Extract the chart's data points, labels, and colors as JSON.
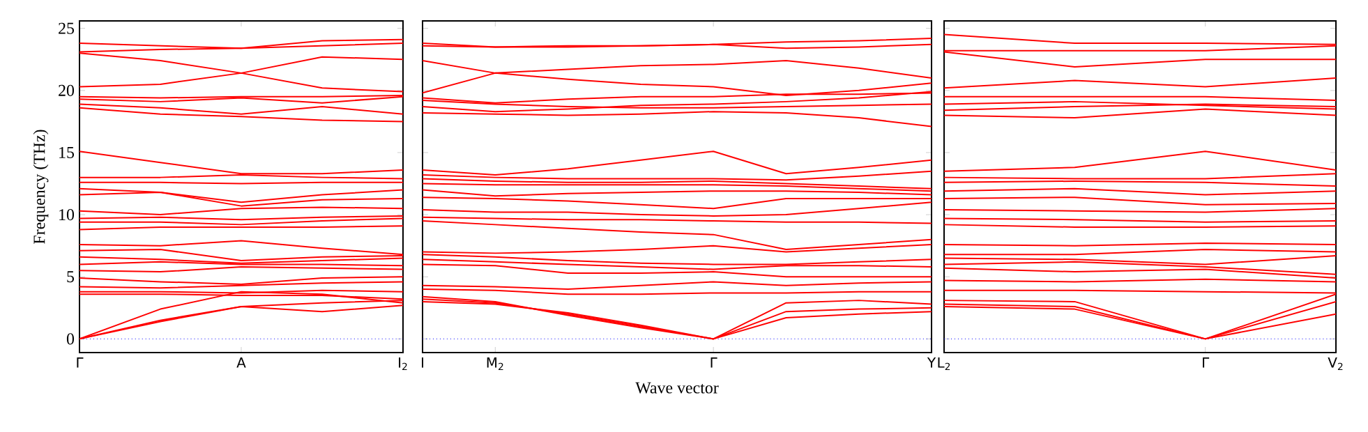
{
  "chart_data": [
    {
      "type": "line",
      "ylabel": "Frequency (THz)",
      "categories": [
        "Γ",
        null,
        "A",
        null,
        "I$_{2}$"
      ],
      "ylim": [
        -1.1,
        25.6
      ],
      "yticks": [
        0,
        5,
        10,
        15,
        20,
        25
      ],
      "ref_lines": [
        {
          "axis": "y",
          "value": 0,
          "color": "#0000ff",
          "line_style": "dotted"
        }
      ],
      "series": [
        {
          "color": "#ff0000",
          "values": [
            23.8,
            23.6,
            23.4,
            24.0,
            24.1
          ]
        },
        {
          "color": "#ff0000",
          "values": [
            23.1,
            23.3,
            23.4,
            23.6,
            23.8
          ]
        },
        {
          "color": "#ff0000",
          "values": [
            23.0,
            22.4,
            21.4,
            22.7,
            22.5
          ]
        },
        {
          "color": "#ff0000",
          "values": [
            20.3,
            20.5,
            21.4,
            20.2,
            19.9
          ]
        },
        {
          "color": "#ff0000",
          "values": [
            19.5,
            19.4,
            19.5,
            19.5,
            19.6
          ]
        },
        {
          "color": "#ff0000",
          "values": [
            19.3,
            19.1,
            19.4,
            19.0,
            19.5
          ]
        },
        {
          "color": "#ff0000",
          "values": [
            18.9,
            18.6,
            18.1,
            18.7,
            18.1
          ]
        },
        {
          "color": "#ff0000",
          "values": [
            18.6,
            18.1,
            17.9,
            17.6,
            17.5
          ]
        },
        {
          "color": "#ff0000",
          "values": [
            15.1,
            14.2,
            13.3,
            13.3,
            13.6
          ]
        },
        {
          "color": "#ff0000",
          "values": [
            13.0,
            13.0,
            13.2,
            13.0,
            12.9
          ]
        },
        {
          "color": "#ff0000",
          "values": [
            12.6,
            12.6,
            12.5,
            12.6,
            12.6
          ]
        },
        {
          "color": "#ff0000",
          "values": [
            12.1,
            11.8,
            11.0,
            11.6,
            12.0
          ]
        },
        {
          "color": "#ff0000",
          "values": [
            11.6,
            11.8,
            10.7,
            11.2,
            11.3
          ]
        },
        {
          "color": "#ff0000",
          "values": [
            10.3,
            10.0,
            10.5,
            10.6,
            10.5
          ]
        },
        {
          "color": "#ff0000",
          "values": [
            9.7,
            9.8,
            9.6,
            9.8,
            9.9
          ]
        },
        {
          "color": "#ff0000",
          "values": [
            9.4,
            9.4,
            9.2,
            9.5,
            9.7
          ]
        },
        {
          "color": "#ff0000",
          "values": [
            8.8,
            9.0,
            9.0,
            9.0,
            9.1
          ]
        },
        {
          "color": "#ff0000",
          "values": [
            7.6,
            7.5,
            7.9,
            7.3,
            6.8
          ]
        },
        {
          "color": "#ff0000",
          "values": [
            7.1,
            7.2,
            6.3,
            6.6,
            6.7
          ]
        },
        {
          "color": "#ff0000",
          "values": [
            6.6,
            6.4,
            6.1,
            6.3,
            6.5
          ]
        },
        {
          "color": "#ff0000",
          "values": [
            6.0,
            6.2,
            6.0,
            6.0,
            5.9
          ]
        },
        {
          "color": "#ff0000",
          "values": [
            5.5,
            5.4,
            5.8,
            5.7,
            5.6
          ]
        },
        {
          "color": "#ff0000",
          "values": [
            4.9,
            4.6,
            4.4,
            4.9,
            5.0
          ]
        },
        {
          "color": "#ff0000",
          "values": [
            4.2,
            4.1,
            4.3,
            4.5,
            4.6
          ]
        },
        {
          "color": "#ff0000",
          "values": [
            3.8,
            3.8,
            3.7,
            3.9,
            3.8
          ]
        },
        {
          "color": "#ff0000",
          "values": [
            3.6,
            3.6,
            3.5,
            3.5,
            3.2
          ]
        },
        {
          "color": "#ff0000",
          "values": [
            0,
            2.4,
            3.8,
            3.6,
            2.9
          ]
        },
        {
          "color": "#ff0000",
          "values": [
            0,
            1.5,
            2.6,
            2.9,
            3.1
          ]
        },
        {
          "color": "#ff0000",
          "values": [
            0,
            1.4,
            2.6,
            2.2,
            2.7
          ]
        }
      ]
    },
    {
      "type": "line",
      "xlabel": "Wave vector",
      "tick_labels": "x",
      "categories": [
        "I",
        "M$_{2}$",
        null,
        null,
        "Γ",
        null,
        null,
        "Y"
      ],
      "ylim": [
        -1.1,
        25.6
      ],
      "yticks": [
        0,
        5,
        10,
        15,
        20,
        25
      ],
      "ref_lines": [
        {
          "axis": "y",
          "value": 0,
          "color": "#0000ff",
          "line_style": "dotted"
        }
      ],
      "series": [
        {
          "color": "#ff0000",
          "values": [
            23.8,
            23.5,
            23.6,
            23.6,
            23.7,
            23.9,
            24.0,
            24.2
          ]
        },
        {
          "color": "#ff0000",
          "values": [
            23.6,
            23.5,
            23.5,
            23.6,
            23.7,
            23.4,
            23.5,
            23.7
          ]
        },
        {
          "color": "#ff0000",
          "values": [
            22.4,
            21.4,
            21.7,
            22.0,
            22.1,
            22.4,
            21.8,
            21.0
          ]
        },
        {
          "color": "#ff0000",
          "values": [
            19.8,
            21.4,
            20.9,
            20.5,
            20.3,
            19.6,
            20.0,
            20.6
          ]
        },
        {
          "color": "#ff0000",
          "values": [
            19.4,
            19.0,
            19.3,
            19.5,
            19.5,
            19.7,
            19.7,
            19.8
          ]
        },
        {
          "color": "#ff0000",
          "values": [
            18.7,
            18.3,
            18.5,
            18.8,
            18.9,
            19.1,
            19.4,
            19.9
          ]
        },
        {
          "color": "#ff0000",
          "values": [
            19.2,
            18.9,
            18.7,
            18.6,
            18.6,
            18.7,
            18.8,
            18.9
          ]
        },
        {
          "color": "#ff0000",
          "values": [
            18.2,
            18.1,
            18.0,
            18.1,
            18.3,
            18.2,
            17.8,
            17.1
          ]
        },
        {
          "color": "#ff0000",
          "values": [
            13.6,
            13.2,
            13.7,
            14.4,
            15.1,
            13.3,
            13.8,
            14.4
          ]
        },
        {
          "color": "#ff0000",
          "values": [
            13.2,
            13.0,
            12.9,
            12.9,
            12.9,
            12.8,
            13.1,
            13.5
          ]
        },
        {
          "color": "#ff0000",
          "values": [
            12.9,
            12.7,
            12.6,
            12.6,
            12.7,
            12.5,
            12.3,
            12.1
          ]
        },
        {
          "color": "#ff0000",
          "values": [
            12.5,
            12.4,
            12.4,
            12.4,
            12.4,
            12.3,
            12.1,
            11.9
          ]
        },
        {
          "color": "#ff0000",
          "values": [
            12.0,
            11.5,
            11.7,
            11.8,
            11.9,
            11.9,
            11.8,
            11.6
          ]
        },
        {
          "color": "#ff0000",
          "values": [
            11.4,
            11.3,
            11.1,
            10.8,
            10.5,
            11.3,
            11.3,
            11.3
          ]
        },
        {
          "color": "#ff0000",
          "values": [
            10.4,
            10.2,
            10.2,
            10.0,
            9.9,
            10.0,
            10.5,
            11.0
          ]
        },
        {
          "color": "#ff0000",
          "values": [
            9.8,
            9.7,
            9.6,
            9.6,
            9.5,
            9.4,
            9.4,
            9.3
          ]
        },
        {
          "color": "#ff0000",
          "values": [
            9.5,
            9.2,
            8.9,
            8.6,
            8.4,
            7.2,
            7.6,
            8.0
          ]
        },
        {
          "color": "#ff0000",
          "values": [
            7.0,
            6.9,
            7.0,
            7.2,
            7.5,
            7.0,
            7.3,
            7.6
          ]
        },
        {
          "color": "#ff0000",
          "values": [
            6.8,
            6.6,
            6.3,
            6.1,
            6.0,
            6.0,
            6.2,
            6.4
          ]
        },
        {
          "color": "#ff0000",
          "values": [
            6.4,
            6.2,
            6.0,
            5.8,
            5.6,
            5.9,
            5.9,
            5.8
          ]
        },
        {
          "color": "#ff0000",
          "values": [
            6.0,
            5.9,
            5.3,
            5.3,
            5.4,
            5.0,
            5.0,
            5.0
          ]
        },
        {
          "color": "#ff0000",
          "values": [
            4.3,
            4.2,
            4.0,
            4.3,
            4.6,
            4.3,
            4.5,
            4.6
          ]
        },
        {
          "color": "#ff0000",
          "values": [
            4.0,
            3.9,
            3.6,
            3.6,
            3.7,
            3.7,
            3.8,
            3.8
          ]
        },
        {
          "color": "#ff0000",
          "values": [
            3.4,
            3.0,
            1.9,
            0.9,
            0,
            2.9,
            3.1,
            2.8
          ]
        },
        {
          "color": "#ff0000",
          "values": [
            3.2,
            2.9,
            2.0,
            1.0,
            0,
            2.2,
            2.4,
            2.5
          ]
        },
        {
          "color": "#ff0000",
          "values": [
            3.0,
            2.8,
            2.1,
            1.1,
            0,
            1.7,
            2.0,
            2.2
          ]
        }
      ]
    },
    {
      "type": "line",
      "tick_labels": "x",
      "categories": [
        "L$_{2}$",
        null,
        "Γ",
        "V$_{2}$"
      ],
      "ylim": [
        -1.1,
        25.6
      ],
      "yticks": [
        0,
        5,
        10,
        15,
        20,
        25
      ],
      "ref_lines": [
        {
          "axis": "y",
          "value": 0,
          "color": "#0000ff",
          "line_style": "dotted"
        }
      ],
      "series": [
        {
          "color": "#ff0000",
          "values": [
            24.5,
            23.8,
            23.8,
            23.7
          ]
        },
        {
          "color": "#ff0000",
          "values": [
            23.2,
            23.2,
            23.2,
            23.6
          ]
        },
        {
          "color": "#ff0000",
          "values": [
            23.1,
            21.9,
            22.5,
            22.5
          ]
        },
        {
          "color": "#ff0000",
          "values": [
            20.2,
            20.8,
            20.3,
            21.0
          ]
        },
        {
          "color": "#ff0000",
          "values": [
            19.5,
            19.5,
            19.5,
            19.2
          ]
        },
        {
          "color": "#ff0000",
          "values": [
            18.4,
            18.7,
            18.9,
            18.7
          ]
        },
        {
          "color": "#ff0000",
          "values": [
            18.9,
            19.1,
            18.8,
            18.5
          ]
        },
        {
          "color": "#ff0000",
          "values": [
            18.0,
            17.8,
            18.5,
            18.0
          ]
        },
        {
          "color": "#ff0000",
          "values": [
            13.5,
            13.8,
            15.1,
            13.6
          ]
        },
        {
          "color": "#ff0000",
          "values": [
            13.0,
            12.9,
            12.9,
            13.3
          ]
        },
        {
          "color": "#ff0000",
          "values": [
            12.6,
            12.7,
            12.6,
            12.3
          ]
        },
        {
          "color": "#ff0000",
          "values": [
            11.9,
            12.1,
            11.6,
            11.9
          ]
        },
        {
          "color": "#ff0000",
          "values": [
            11.3,
            11.4,
            10.8,
            10.9
          ]
        },
        {
          "color": "#ff0000",
          "values": [
            10.4,
            10.3,
            10.2,
            10.5
          ]
        },
        {
          "color": "#ff0000",
          "values": [
            9.7,
            9.6,
            9.4,
            9.5
          ]
        },
        {
          "color": "#ff0000",
          "values": [
            9.2,
            9.0,
            9.0,
            9.1
          ]
        },
        {
          "color": "#ff0000",
          "values": [
            7.6,
            7.5,
            7.7,
            7.6
          ]
        },
        {
          "color": "#ff0000",
          "values": [
            6.8,
            6.8,
            7.2,
            7.0
          ]
        },
        {
          "color": "#ff0000",
          "values": [
            6.5,
            6.4,
            6.0,
            6.7
          ]
        },
        {
          "color": "#ff0000",
          "values": [
            6.0,
            6.2,
            5.8,
            5.2
          ]
        },
        {
          "color": "#ff0000",
          "values": [
            5.7,
            5.4,
            5.6,
            4.9
          ]
        },
        {
          "color": "#ff0000",
          "values": [
            4.7,
            4.6,
            4.8,
            4.6
          ]
        },
        {
          "color": "#ff0000",
          "values": [
            3.9,
            3.9,
            3.8,
            3.7
          ]
        },
        {
          "color": "#ff0000",
          "values": [
            3.1,
            3.0,
            0,
            3.6
          ]
        },
        {
          "color": "#ff0000",
          "values": [
            2.8,
            2.6,
            0,
            3.0
          ]
        },
        {
          "color": "#ff0000",
          "values": [
            2.6,
            2.4,
            0,
            2.0
          ]
        }
      ]
    }
  ]
}
